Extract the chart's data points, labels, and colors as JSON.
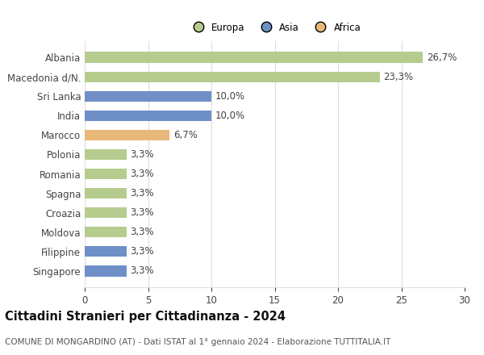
{
  "countries": [
    "Albania",
    "Macedonia d/N.",
    "Sri Lanka",
    "India",
    "Marocco",
    "Polonia",
    "Romania",
    "Spagna",
    "Croazia",
    "Moldova",
    "Filippine",
    "Singapore"
  ],
  "values": [
    26.7,
    23.3,
    10.0,
    10.0,
    6.7,
    3.3,
    3.3,
    3.3,
    3.3,
    3.3,
    3.3,
    3.3
  ],
  "labels": [
    "26,7%",
    "23,3%",
    "10,0%",
    "10,0%",
    "6,7%",
    "3,3%",
    "3,3%",
    "3,3%",
    "3,3%",
    "3,3%",
    "3,3%",
    "3,3%"
  ],
  "continents": [
    "Europa",
    "Europa",
    "Asia",
    "Asia",
    "Africa",
    "Europa",
    "Europa",
    "Europa",
    "Europa",
    "Europa",
    "Asia",
    "Asia"
  ],
  "colors": {
    "Europa": "#b5cc8e",
    "Asia": "#6f8fc7",
    "Africa": "#e8b87a"
  },
  "legend_labels": [
    "Europa",
    "Asia",
    "Africa"
  ],
  "legend_colors": [
    "#b5cc8e",
    "#6f8fc7",
    "#e8b87a"
  ],
  "title": "Cittadini Stranieri per Cittadinanza - 2024",
  "subtitle": "COMUNE DI MONGARDINO (AT) - Dati ISTAT al 1° gennaio 2024 - Elaborazione TUTTITALIA.IT",
  "xlim": [
    0,
    30
  ],
  "xticks": [
    0,
    5,
    10,
    15,
    20,
    25,
    30
  ],
  "background_color": "#ffffff",
  "grid_color": "#dddddd",
  "bar_height": 0.55,
  "label_fontsize": 8.5,
  "tick_fontsize": 8.5,
  "title_fontsize": 10.5,
  "subtitle_fontsize": 7.5
}
